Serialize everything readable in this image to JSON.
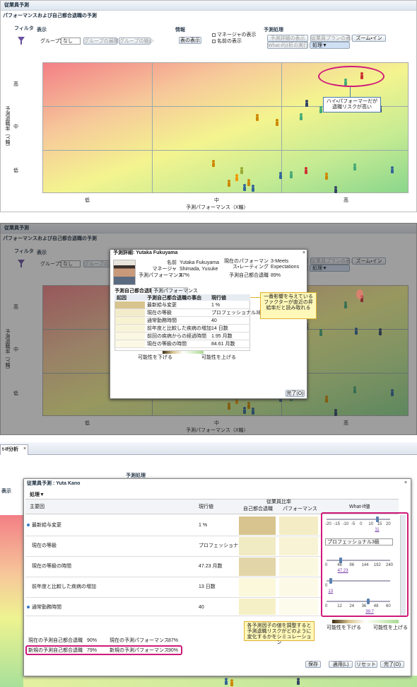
{
  "panel1": {
    "title": "従業員予測",
    "subtitle": "パフォーマンスおよび自己都合退職の予測",
    "toolbar": {
      "filter": "フィルタ",
      "view": "表示",
      "group_by": "グループ別",
      "group_value": "なし",
      "expand": "グループの展開",
      "collapse": "グループの縮小",
      "info": "情報",
      "show_table": "表の表示",
      "show_manager": "マネージャの表示",
      "show_name": "名前の表示",
      "actions": "予測処理",
      "show_detail": "予測詳細の表示",
      "show_plan": "従業員プランの表示",
      "zoom_in": "ズーム・イン",
      "run_whatif": "What-if分析の実行",
      "process": "処理▼"
    },
    "y_labels": [
      "高",
      "中",
      "低"
    ],
    "y_title": "予測退職率（Y軸）",
    "x_labels": [
      "低",
      "中",
      "高"
    ],
    "x_title": "予測パフォーマンス（X軸）",
    "callout": "ハイ・パフォーマーだが退職リスクが高い"
  },
  "panel2": {
    "dialog_title": "予測詳細: Yutaka Fukuyama",
    "fields": [
      {
        "label": "名前",
        "value": "Yutaka Fukuyama"
      },
      {
        "label": "マネージャ",
        "value": "Shimada, Yusuke"
      },
      {
        "label": "予測パフォーマンス",
        "value": "87%"
      }
    ],
    "right_fields": [
      {
        "label": "現在のパフォーマンス・レーティング",
        "value": "3-Meets Expectations"
      },
      {
        "label": "予測自己都合退職",
        "value": "89%"
      }
    ],
    "tabs": [
      "予測自己都合退職",
      "予測パフォーマンス"
    ],
    "table_header": [
      "起因",
      "予測自己都合退職の事由",
      "現行値"
    ],
    "rows": [
      [
        "最新給与変更",
        "1 %"
      ],
      [
        "現在の等級",
        "プロフェッショナル3級"
      ],
      [
        "通常勤務時間",
        "40"
      ],
      [
        "前年度と比較した疾病の増加",
        "14 日数"
      ],
      [
        "前回の疾病からの経過時間",
        "1.95 月数"
      ],
      [
        "現在の等級の時間",
        "84.61 月数"
      ]
    ],
    "legend": [
      "可能性を下げる",
      "可能性を上げる"
    ],
    "done": "完了(O)",
    "callout": "一番影響を与えているファクターが直近の昇給率だと読み取れる"
  },
  "panel3": {
    "tab": "t-If分析",
    "dialog_title": "従業員予測 : Yuta Kano",
    "process": "処理▼",
    "header": {
      "factor": "主要因",
      "current": "現行値",
      "ratio": "従業員比率",
      "attrition": "自己都合退職",
      "performance": "パフォーマンス",
      "whatif": "What-If値"
    },
    "rows": [
      [
        "最新給与変更",
        "1 %"
      ],
      [
        "現在の等級",
        "プロフェッショナ…"
      ],
      [
        "現在の等級の時間",
        "47.23 月数"
      ],
      [
        "前年度と比較した疾病の増加",
        "13 日数"
      ],
      [
        "通常勤務時間",
        "40"
      ]
    ],
    "whatif": [
      {
        "ticks": [
          "-20",
          "-15",
          "-10",
          "-5",
          "0",
          "10",
          "15",
          "20"
        ],
        "value": "11"
      },
      {
        "select": "プロフェッショナル3級"
      },
      {
        "ticks": [
          "0",
          "48",
          "96",
          "144",
          "192",
          "240"
        ],
        "value": "47.23"
      },
      {
        "ticks": [
          "0"
        ],
        "value": "13"
      },
      {
        "ticks": [
          "0",
          "12",
          "24",
          "36",
          "48",
          "60"
        ],
        "value": "39.7"
      }
    ],
    "summary": [
      {
        "label": "現在の予測自己都合退職",
        "value": "90%"
      },
      {
        "label": "現在の予測パフォーマンス",
        "value": "87%"
      },
      {
        "label": "新規の予測自己都合退職",
        "value": "79%"
      },
      {
        "label": "新規の予測パフォーマンス",
        "value": "90%"
      }
    ],
    "legend": [
      "可能性を下げる",
      "可能性を上げる"
    ],
    "callout": "各予測因子の値を調整すると予測退職リスクがどのように変化するかをシミュレーション",
    "buttons": [
      "保存",
      "適用(L)",
      "リセット",
      "完了(O)"
    ]
  }
}
